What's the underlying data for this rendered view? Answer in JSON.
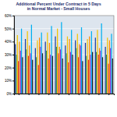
{
  "chart_data": {
    "type": "bar",
    "title": "Additional Percent Under Contract in 5 Days in Normal Market - Small Houses",
    "categories": [
      null,
      null,
      null,
      null,
      null,
      null,
      null,
      null,
      null,
      null
    ],
    "series": [
      {
        "color": "#1f3f9f",
        "values": [
          38,
          42,
          35,
          40,
          44,
          37,
          41,
          39,
          43,
          36
        ]
      },
      {
        "color": "#2e8b57",
        "values": [
          30,
          34,
          28,
          33,
          36,
          31,
          35,
          29,
          32,
          30
        ]
      },
      {
        "color": "#f2c500",
        "values": [
          45,
          48,
          41,
          47,
          50,
          44,
          46,
          42,
          49,
          43
        ]
      },
      {
        "color": "#e03030",
        "values": [
          25,
          29,
          22,
          27,
          31,
          24,
          28,
          26,
          30,
          23
        ]
      },
      {
        "color": "#ff8c00",
        "values": [
          40,
          37,
          43,
          39,
          36,
          42,
          38,
          44,
          35,
          41
        ]
      },
      {
        "color": "#8a2be2",
        "values": [
          33,
          31,
          36,
          30,
          34,
          32,
          37,
          30,
          33,
          35
        ]
      },
      {
        "color": "#00b0f0",
        "values": [
          50,
          53,
          47,
          52,
          55,
          49,
          51,
          48,
          54,
          46
        ]
      },
      {
        "color": "#202020",
        "values": [
          28,
          26,
          31,
          29,
          27,
          30,
          25,
          32,
          28,
          27
        ]
      }
    ],
    "ylim": [
      0,
      60
    ],
    "yticks": [
      {
        "value": 0,
        "label": "0%"
      },
      {
        "value": 10,
        "label": "10%"
      },
      {
        "value": 20,
        "label": "20%"
      },
      {
        "value": 30,
        "label": "30%"
      },
      {
        "value": 40,
        "label": "40%"
      },
      {
        "value": 50,
        "label": "50%"
      },
      {
        "value": 60,
        "label": "60%"
      }
    ],
    "grid": true
  }
}
